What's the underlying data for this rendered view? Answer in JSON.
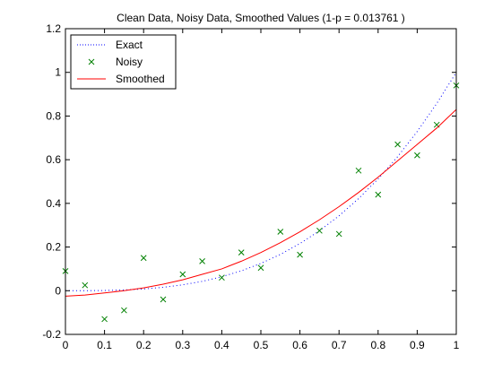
{
  "chart_data": {
    "type": "line",
    "title": "Clean Data, Noisy Data, Smoothed Values (1-p = 0.013761 )",
    "xlabel": "",
    "ylabel": "",
    "xlim": [
      0,
      1
    ],
    "ylim": [
      -0.2,
      1.2
    ],
    "xticks": [
      0,
      0.1,
      0.2,
      0.3,
      0.4,
      0.5,
      0.6,
      0.7,
      0.8,
      0.9,
      1
    ],
    "xtick_labels": [
      "0",
      "0.1",
      "0.2",
      "0.3",
      "0.4",
      "0.5",
      "0.6",
      "0.7",
      "0.8",
      "0.9",
      "1"
    ],
    "yticks": [
      -0.2,
      0,
      0.2,
      0.4,
      0.6,
      0.8,
      1,
      1.2
    ],
    "ytick_labels": [
      "-0.2",
      "0",
      "0.2",
      "0.4",
      "0.6",
      "0.8",
      "1",
      "1.2"
    ],
    "grid": false,
    "legend_position": "top-left",
    "series": [
      {
        "name": "Exact",
        "style": "dotted",
        "color": "#0000ff",
        "x": [
          0,
          0.05,
          0.1,
          0.15,
          0.2,
          0.25,
          0.3,
          0.35,
          0.4,
          0.45,
          0.5,
          0.55,
          0.6,
          0.65,
          0.7,
          0.75,
          0.8,
          0.85,
          0.9,
          0.95,
          1
        ],
        "values": [
          0,
          0.0001,
          0.001,
          0.0034,
          0.008,
          0.0156,
          0.027,
          0.0429,
          0.064,
          0.0911,
          0.125,
          0.1664,
          0.216,
          0.2746,
          0.343,
          0.4219,
          0.512,
          0.6141,
          0.729,
          0.8574,
          1
        ]
      },
      {
        "name": "Noisy",
        "style": "markers",
        "marker": "x",
        "color": "#008000",
        "x": [
          0,
          0.05,
          0.1,
          0.15,
          0.2,
          0.25,
          0.3,
          0.35,
          0.4,
          0.45,
          0.5,
          0.55,
          0.6,
          0.65,
          0.7,
          0.75,
          0.8,
          0.85,
          0.9,
          0.95,
          1
        ],
        "values": [
          0.09,
          0.025,
          -0.13,
          -0.09,
          0.15,
          -0.04,
          0.075,
          0.135,
          0.06,
          0.175,
          0.105,
          0.27,
          0.165,
          0.275,
          0.26,
          0.55,
          0.44,
          0.67,
          0.62,
          0.76,
          0.94
        ]
      },
      {
        "name": "Smoothed",
        "style": "solid",
        "color": "#ff0000",
        "x": [
          0,
          0.05,
          0.1,
          0.15,
          0.2,
          0.25,
          0.3,
          0.35,
          0.4,
          0.45,
          0.5,
          0.55,
          0.6,
          0.65,
          0.7,
          0.75,
          0.8,
          0.85,
          0.9,
          0.95,
          1
        ],
        "values": [
          -0.025,
          -0.02,
          -0.01,
          0.0,
          0.013,
          0.03,
          0.05,
          0.075,
          0.1,
          0.135,
          0.175,
          0.22,
          0.27,
          0.325,
          0.385,
          0.45,
          0.52,
          0.595,
          0.67,
          0.745,
          0.83
        ]
      }
    ]
  }
}
